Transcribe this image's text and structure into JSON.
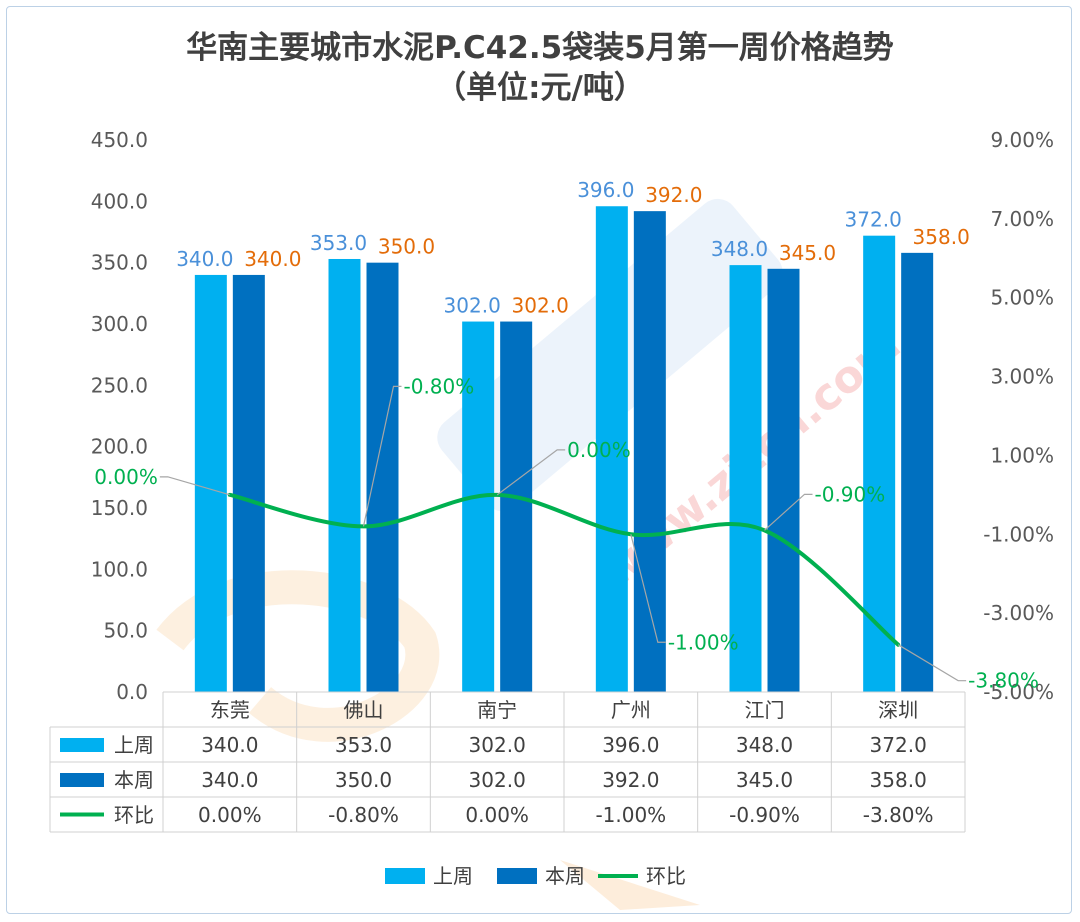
{
  "chart_data": {
    "type": "bar",
    "title": "华南主要城市水泥P.C42.5袋装5月第一周价格趋势",
    "subtitle": "（单位:元/吨）",
    "categories": [
      "东莞",
      "佛山",
      "南宁",
      "广州",
      "江门",
      "深圳"
    ],
    "series": [
      {
        "name": "上周",
        "type": "bar",
        "color": "#00b0f0",
        "values": [
          340.0,
          353.0,
          302.0,
          396.0,
          348.0,
          372.0
        ],
        "labels": [
          "340.0",
          "353.0",
          "302.0",
          "396.0",
          "348.0",
          "372.0"
        ]
      },
      {
        "name": "本周",
        "type": "bar",
        "color": "#0070c0",
        "values": [
          340.0,
          350.0,
          302.0,
          392.0,
          345.0,
          358.0
        ],
        "labels": [
          "340.0",
          "350.0",
          "302.0",
          "392.0",
          "345.0",
          "358.0"
        ]
      },
      {
        "name": "环比",
        "type": "line",
        "axis": "right",
        "color": "#00b050",
        "values": [
          0.0,
          -0.8,
          0.0,
          -1.0,
          -0.9,
          -3.8
        ],
        "labels": [
          "0.00%",
          "-0.80%",
          "0.00%",
          "-1.00%",
          "-0.90%",
          "-3.80%"
        ]
      }
    ],
    "y_left": {
      "range": [
        0,
        450
      ],
      "ticks": [
        "0.0",
        "50.0",
        "100.0",
        "150.0",
        "200.0",
        "250.0",
        "300.0",
        "350.0",
        "400.0",
        "450.0"
      ]
    },
    "y_right": {
      "range": [
        -5,
        9
      ],
      "ticks": [
        "-5.00%",
        "-3.00%",
        "-1.00%",
        "1.00%",
        "3.00%",
        "5.00%",
        "7.00%",
        "9.00%"
      ]
    },
    "data_table": {
      "rows": [
        {
          "label": "上周",
          "cells": [
            "340.0",
            "353.0",
            "302.0",
            "396.0",
            "348.0",
            "372.0"
          ]
        },
        {
          "label": "本周",
          "cells": [
            "340.0",
            "350.0",
            "302.0",
            "392.0",
            "345.0",
            "358.0"
          ]
        },
        {
          "label": "环比",
          "cells": [
            "0.00%",
            "-0.80%",
            "0.00%",
            "-1.00%",
            "-0.90%",
            "-3.80%"
          ]
        }
      ]
    },
    "legend": {
      "position": "bottom",
      "items": [
        "上周",
        "本周",
        "环比"
      ]
    },
    "grid": false,
    "watermark": "www.zjtcn.com"
  }
}
